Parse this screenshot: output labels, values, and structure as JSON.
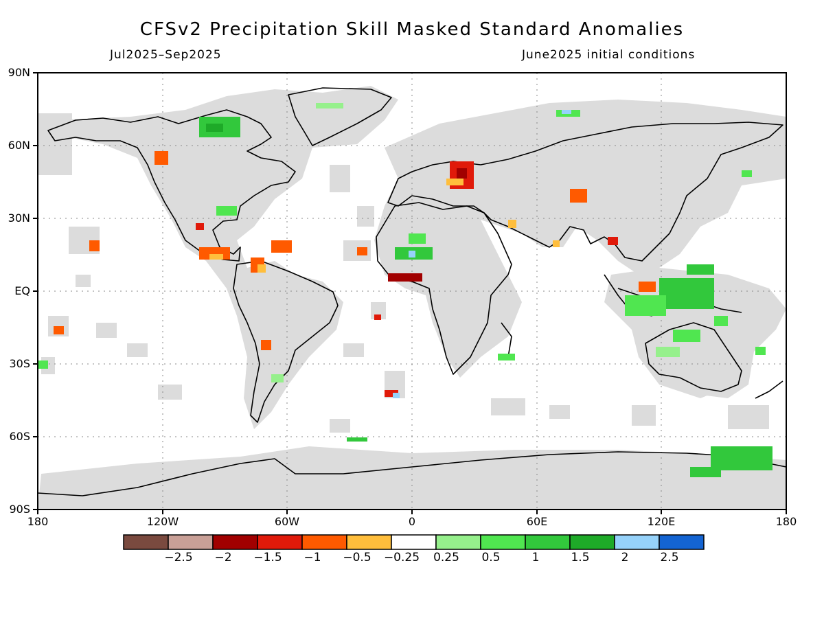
{
  "title": "CFSv2 Precipitation Skill Masked Standard Anomalies",
  "subtitle_left": "Jul2025–Sep2025",
  "subtitle_right": "June2025 initial conditions",
  "lat_labels": [
    "90N",
    "60N",
    "30N",
    "EQ",
    "30S",
    "60S",
    "90S"
  ],
  "lon_labels": [
    "180",
    "120W",
    "60W",
    "0",
    "60E",
    "120E",
    "180"
  ],
  "colorbar": {
    "colors": [
      "#7a4a3f",
      "#c9a097",
      "#a10000",
      "#e01a0a",
      "#ff5a00",
      "#ffbe3c",
      "#ffffff",
      "#96f08c",
      "#50e650",
      "#32c83c",
      "#1eaa28",
      "#96d2fa",
      "#1464d2"
    ],
    "labels": [
      "-2.5",
      "-2",
      "-1.5",
      "-1",
      "-0.5",
      "-0.25",
      "0.25",
      "0.5",
      "1",
      "1.5",
      "2",
      "2.5"
    ]
  },
  "mask_color": "#dcdcdc"
}
